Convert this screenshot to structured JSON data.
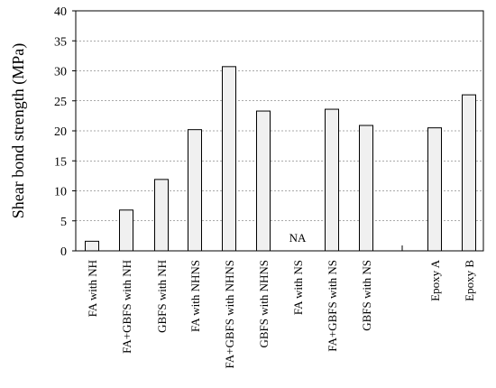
{
  "chart_data": {
    "type": "bar",
    "ylabel": "Shear bond strength (MPa)",
    "xlabel": "",
    "ylim": [
      0,
      40
    ],
    "y_ticks": [
      0,
      5,
      10,
      15,
      20,
      25,
      30,
      35,
      40
    ],
    "grid": "horizontal dashed",
    "categories": [
      "FA with NH",
      "FA+GBFS with NH",
      "GBFS with NH",
      "FA with NHNS",
      "FA+GBFS with NHNS",
      "GBFS with NHNS",
      "FA with NS",
      "FA+GBFS with NS",
      "GBFS with NS",
      "Epoxy A",
      "Epoxy B"
    ],
    "values": [
      1.6,
      6.8,
      11.9,
      20.2,
      30.7,
      23.3,
      null,
      23.6,
      20.9,
      20.5,
      26.0
    ],
    "annotations": [
      {
        "category": "FA with NS",
        "text": "NA"
      }
    ],
    "colors": {
      "bar_fill": "#f0f0f0",
      "bar_stroke": "#000000"
    }
  }
}
